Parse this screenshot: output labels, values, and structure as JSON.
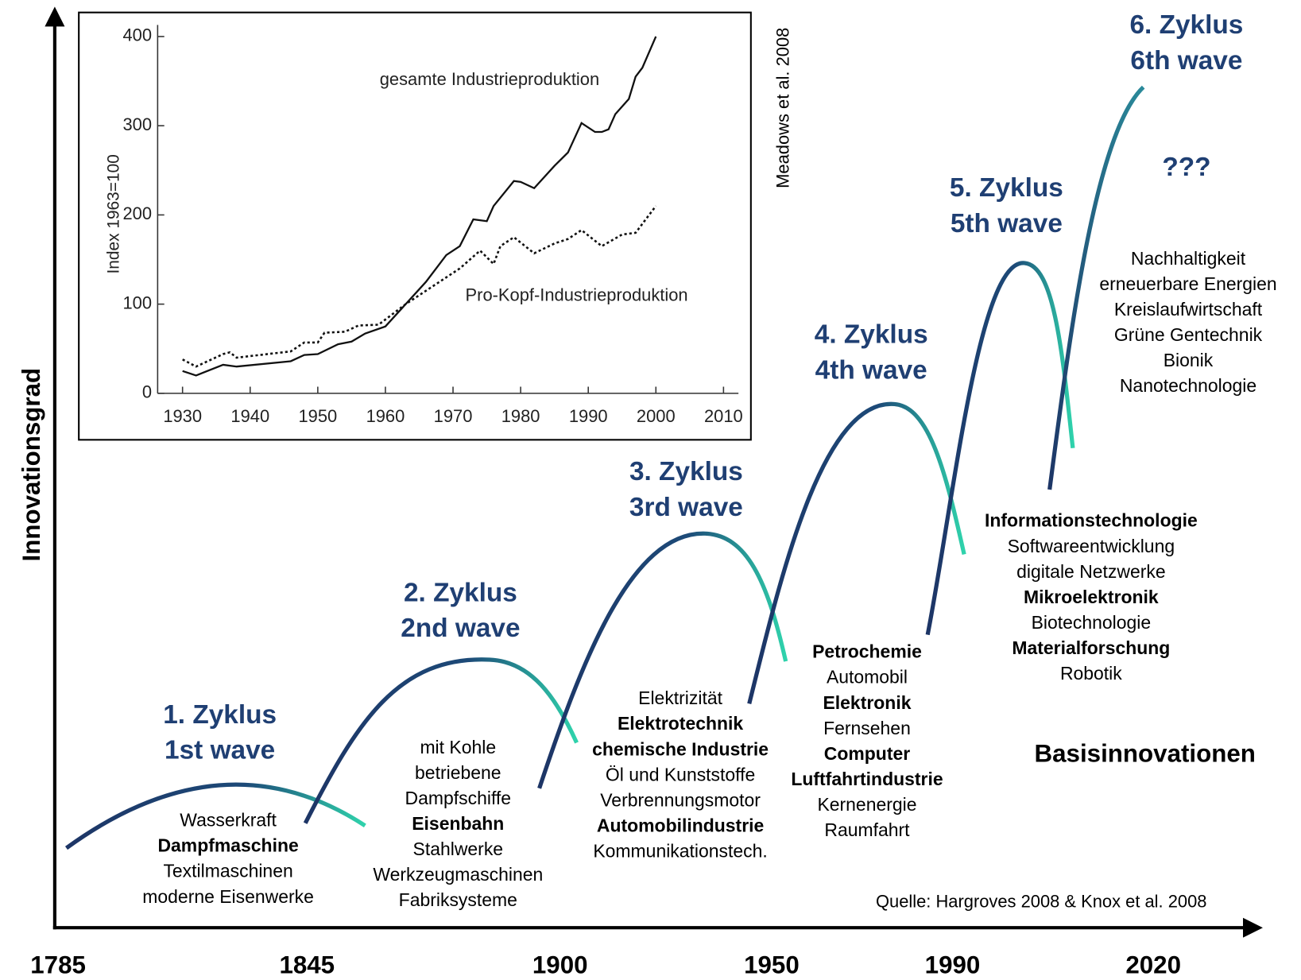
{
  "chart_data": {
    "type": "line",
    "ylabel": "Index 1963=100",
    "source": "Meadows et al. 2008",
    "xlim": [
      1930,
      2010
    ],
    "xticks": [
      1930,
      1940,
      1950,
      1960,
      1970,
      1980,
      1990,
      2000,
      2010
    ],
    "ylim": [
      0,
      400
    ],
    "yticks": [
      0,
      100,
      200,
      300,
      400
    ],
    "series": [
      {
        "name": "gesamte Industrieproduktion",
        "style": "solid",
        "color": "#111111",
        "x": [
          1930,
          1932,
          1936,
          1938,
          1946,
          1948,
          1950,
          1953,
          1955,
          1957,
          1960,
          1963,
          1966,
          1968,
          1969,
          1971,
          1973,
          1975,
          1976,
          1979,
          1980,
          1982,
          1985,
          1987,
          1989,
          1991,
          1992,
          1993,
          1994,
          1996,
          1997,
          1998,
          2000
        ],
        "values": [
          25,
          20,
          32,
          30,
          36,
          43,
          44,
          55,
          58,
          67,
          75,
          100,
          125,
          145,
          155,
          165,
          195,
          193,
          210,
          238,
          237,
          230,
          255,
          270,
          303,
          293,
          293,
          296,
          313,
          330,
          355,
          365,
          400
        ]
      },
      {
        "name": "Pro-Kopf-Industrieproduktion",
        "style": "dotted",
        "color": "#111111",
        "x": [
          1930,
          1932,
          1936,
          1937,
          1938,
          1946,
          1948,
          1950,
          1951,
          1954,
          1956,
          1959,
          1963,
          1966,
          1970,
          1971,
          1974,
          1976,
          1977,
          1979,
          1982,
          1985,
          1987,
          1989,
          1992,
          1995,
          1997,
          1999,
          2000
        ],
        "values": [
          38,
          30,
          44,
          46,
          40,
          47,
          57,
          57,
          68,
          69,
          76,
          77,
          100,
          115,
          135,
          140,
          160,
          145,
          165,
          175,
          157,
          168,
          173,
          183,
          165,
          178,
          180,
          200,
          210
        ]
      }
    ]
  },
  "diagram": {
    "y_axis_label": "Innovationsgrad",
    "x_labels": [
      "1785",
      "1845",
      "1900",
      "1950",
      "1990",
      "2020"
    ],
    "corner_label": "Basisinnovationen",
    "source": "Quelle: Hargroves 2008 & Knox et al. 2008",
    "waves": [
      {
        "title": [
          "1. Zyklus",
          "1st wave"
        ],
        "items": [
          {
            "text": "Wasserkraft",
            "bold": false
          },
          {
            "text": "Dampfmaschine",
            "bold": true
          },
          {
            "text": "Textilmaschinen",
            "bold": false
          },
          {
            "text": "moderne Eisenwerke",
            "bold": false
          }
        ]
      },
      {
        "title": [
          "2. Zyklus",
          "2nd wave"
        ],
        "items": [
          {
            "text": "mit Kohle",
            "bold": false
          },
          {
            "text": "betriebene",
            "bold": false
          },
          {
            "text": "Dampfschiffe",
            "bold": false
          },
          {
            "text": "Eisenbahn",
            "bold": true
          },
          {
            "text": "Stahlwerke",
            "bold": false
          },
          {
            "text": "Werkzeugmaschinen",
            "bold": false
          },
          {
            "text": "Fabriksysteme",
            "bold": false
          }
        ]
      },
      {
        "title": [
          "3. Zyklus",
          "3rd wave"
        ],
        "items": [
          {
            "text": "Elektrizität",
            "bold": false
          },
          {
            "text": "Elektrotechnik",
            "bold": true
          },
          {
            "text": "chemische Industrie",
            "bold": true
          },
          {
            "text": "Öl und Kunststoffe",
            "bold": false
          },
          {
            "text": "Verbrennungsmotor",
            "bold": false
          },
          {
            "text": "Automobilindustrie",
            "bold": true
          },
          {
            "text": "Kommunikationstech.",
            "bold": false
          }
        ]
      },
      {
        "title": [
          "4. Zyklus",
          "4th wave"
        ],
        "items": [
          {
            "text": "Petrochemie",
            "bold": true
          },
          {
            "text": "Automobil",
            "bold": false
          },
          {
            "text": "Elektronik",
            "bold": true
          },
          {
            "text": "Fernsehen",
            "bold": false
          },
          {
            "text": "Computer",
            "bold": true
          },
          {
            "text": "Luftfahrtindustrie",
            "bold": true
          },
          {
            "text": "Kernenergie",
            "bold": false
          },
          {
            "text": "Raumfahrt",
            "bold": false
          }
        ]
      },
      {
        "title": [
          "5. Zyklus",
          "5th wave"
        ],
        "items": [
          {
            "text": "Informationstechnologie",
            "bold": true
          },
          {
            "text": "Softwareentwicklung",
            "bold": false
          },
          {
            "text": "digitale Netzwerke",
            "bold": false
          },
          {
            "text": "Mikroelektronik",
            "bold": true
          },
          {
            "text": "Biotechnologie",
            "bold": false
          },
          {
            "text": "Materialforschung",
            "bold": true
          },
          {
            "text": "Robotik",
            "bold": false
          }
        ]
      },
      {
        "title": [
          "6. Zyklus",
          "6th wave"
        ],
        "note": "???",
        "items": [
          {
            "text": "Nachhaltigkeit",
            "bold": false
          },
          {
            "text": "erneuerbare Energien",
            "bold": false
          },
          {
            "text": "Kreislaufwirtschaft",
            "bold": false
          },
          {
            "text": "Grüne Gentechnik",
            "bold": false
          },
          {
            "text": "Bionik",
            "bold": false
          },
          {
            "text": "Nanotechnologie",
            "bold": false
          }
        ]
      }
    ]
  }
}
